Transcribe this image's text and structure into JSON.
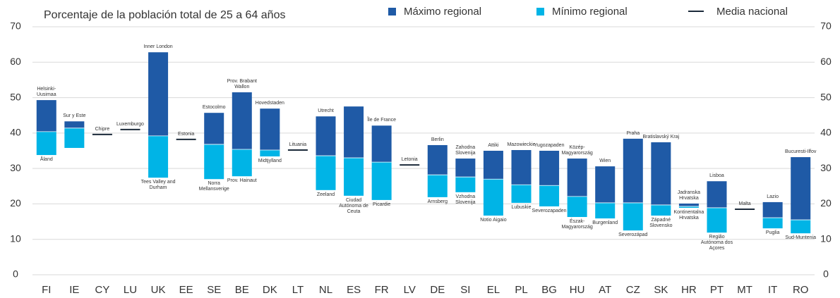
{
  "chart_data": {
    "type": "floating-bar",
    "title": "Porcentaje de la población total de 25 a 64 años",
    "categories": [
      "FI",
      "IE",
      "CY",
      "LU",
      "UK",
      "EE",
      "SE",
      "BE",
      "DK",
      "LT",
      "NL",
      "ES",
      "FR",
      "LV",
      "DE",
      "SI",
      "EL",
      "PL",
      "BG",
      "HU",
      "AT",
      "CZ",
      "SK",
      "HR",
      "PT",
      "MT",
      "IT",
      "RO"
    ],
    "series": [
      {
        "name": "Máximo regional",
        "color": "#1f5aa6",
        "values": [
          49.3,
          43.3,
          null,
          null,
          62.8,
          null,
          45.7,
          51.5,
          46.9,
          null,
          44.7,
          47.5,
          42.1,
          null,
          36.6,
          32.8,
          35.0,
          35.2,
          35.0,
          32.8,
          30.6,
          38.4,
          37.4,
          20.1,
          26.4,
          null,
          20.5,
          33.2
        ]
      },
      {
        "name": "Mínimo regional",
        "color": "#00b4e6",
        "values": [
          33.8,
          35.8,
          null,
          null,
          27.4,
          null,
          27.0,
          27.8,
          33.4,
          null,
          23.9,
          22.3,
          21.1,
          null,
          21.9,
          23.3,
          16.7,
          20.3,
          19.3,
          16.3,
          15.9,
          12.5,
          16.7,
          18.9,
          11.9,
          null,
          13.1,
          11.7
        ]
      },
      {
        "name": "Media nacional",
        "color": "#1b2a3a",
        "values": [
          40.4,
          41.4,
          39.6,
          41.0,
          39.2,
          38.2,
          36.8,
          35.4,
          35.2,
          35.2,
          33.6,
          33.0,
          31.8,
          31.0,
          28.2,
          27.6,
          27.0,
          25.4,
          25.2,
          22.1,
          20.3,
          20.3,
          19.7,
          19.3,
          18.9,
          18.5,
          16.1,
          15.5
        ]
      }
    ],
    "max_labels": [
      "Helsinki-Uusimaa",
      "Sur y Este",
      "Chipre",
      "Luxemburgo",
      "Inner London",
      "Estonia",
      "Estocolmo",
      "Prov. Brabant Wallon",
      "Hovedstaden",
      "Lituania",
      "Utrecht",
      null,
      "Île de France",
      "Letonia",
      "Berlin",
      "Zahodna Slovenija",
      "Attiki",
      "Mazowieckie",
      "Yugozapaden",
      "Közép-Magyarország",
      "Wien",
      "Praha",
      "Bratislavský Kraj",
      "Jadranska Hrvatska",
      "Lisboa",
      "Malta",
      "Lazio",
      "Bucuresti-Ilfov"
    ],
    "min_labels": [
      "Åland",
      null,
      null,
      null,
      "Tees Valley and Durham",
      null,
      "Norra Mellansverige",
      "Prov. Hainaut",
      "Midtjylland",
      null,
      "Zeeland",
      "Ciudad Autónoma de Ceuta",
      "Picardie",
      null,
      "Arnsberg",
      "Vzhodna Slovenija",
      "Notio Aigaio",
      "Lubuskie",
      "Severozapaden",
      "Észak-Magyarország",
      "Burgenland",
      "Severozápad",
      "Západné Slovensko",
      "Kontinentalna Hrvatska",
      "Região Autónoma dos Açores",
      null,
      "Puglia",
      "Sud-Muntenia"
    ],
    "ylim": [
      0,
      70
    ],
    "yticks": [
      0,
      10,
      20,
      30,
      40,
      50,
      60,
      70
    ],
    "y2lim": [
      0,
      70
    ],
    "y2ticks": [
      0,
      10,
      20,
      30,
      40,
      50,
      60,
      70
    ],
    "grid": true
  }
}
